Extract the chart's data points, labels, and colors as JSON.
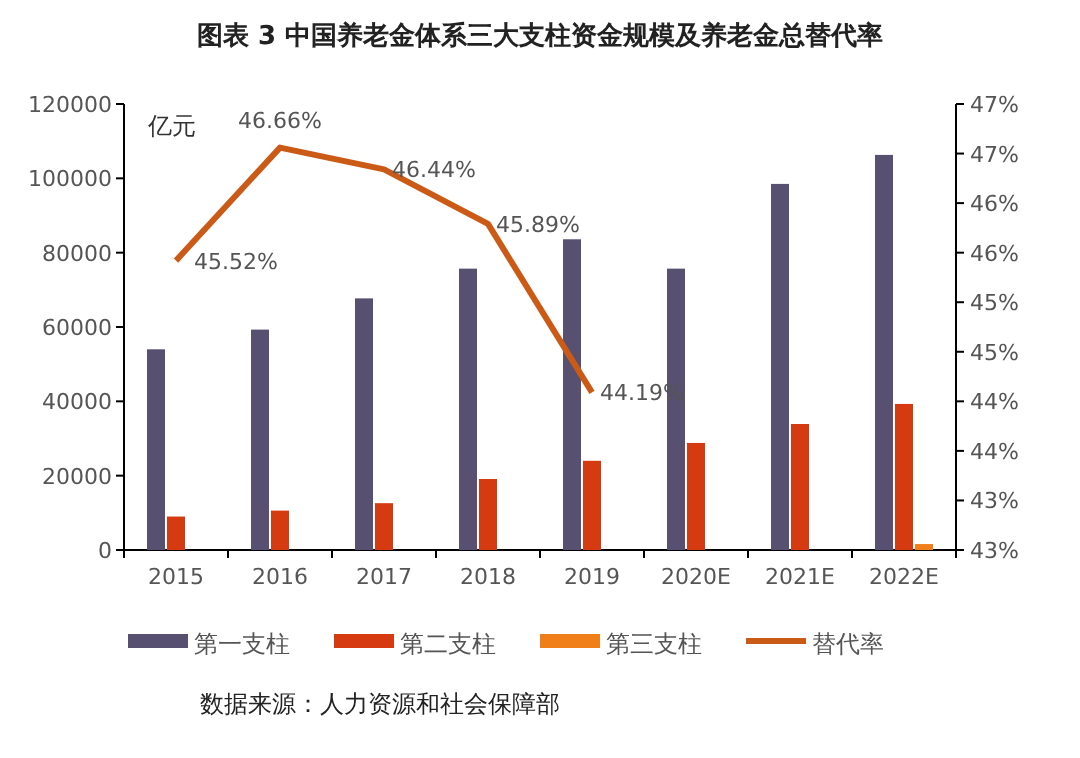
{
  "chart_data": {
    "type": "bar",
    "title": "图表 3  中国养老金体系三大支柱资金规模及养老金总替代率",
    "ylabel": "亿元",
    "categories": [
      "2015",
      "2016",
      "2017",
      "2018",
      "2019",
      "2020E",
      "2021E",
      "2022E"
    ],
    "series": [
      {
        "name": "第一支柱",
        "color": "#575071",
        "values": [
          54000,
          59300,
          67700,
          75700,
          83600,
          75700,
          98500,
          106300
        ]
      },
      {
        "name": "第二支柱",
        "color": "#d63a10",
        "values": [
          9000,
          10600,
          12600,
          19100,
          24000,
          28800,
          33900,
          39300
        ]
      },
      {
        "name": "第三支柱",
        "color": "#f07f1a",
        "values": [
          null,
          null,
          null,
          null,
          null,
          null,
          null,
          1600
        ]
      },
      {
        "name": "替代率",
        "type": "line",
        "axis": "y2",
        "color": "#cc5a17",
        "values": [
          45.52,
          46.66,
          46.44,
          45.89,
          44.19,
          null,
          null,
          null
        ],
        "value_labels": [
          "45.52%",
          "46.66%",
          "46.44%",
          "45.89%",
          "44.19%",
          null,
          null,
          null
        ]
      }
    ],
    "ylim": [
      0,
      120000
    ],
    "yticks": [
      0,
      20000,
      40000,
      60000,
      80000,
      100000,
      120000
    ],
    "y2lim": [
      42.6,
      47.1
    ],
    "y2ticks": [
      {
        "value": 42.6,
        "label": "43%"
      },
      {
        "value": 43.1,
        "label": "43%"
      },
      {
        "value": 43.6,
        "label": "44%"
      },
      {
        "value": 44.1,
        "label": "44%"
      },
      {
        "value": 44.6,
        "label": "45%"
      },
      {
        "value": 45.1,
        "label": "45%"
      },
      {
        "value": 45.6,
        "label": "46%"
      },
      {
        "value": 46.1,
        "label": "46%"
      },
      {
        "value": 46.6,
        "label": "47%"
      },
      {
        "value": 47.1,
        "label": "47%"
      }
    ],
    "legend": "bottom",
    "grid": false,
    "annotations": [
      "数据来源：人力资源和社会保障部"
    ]
  }
}
